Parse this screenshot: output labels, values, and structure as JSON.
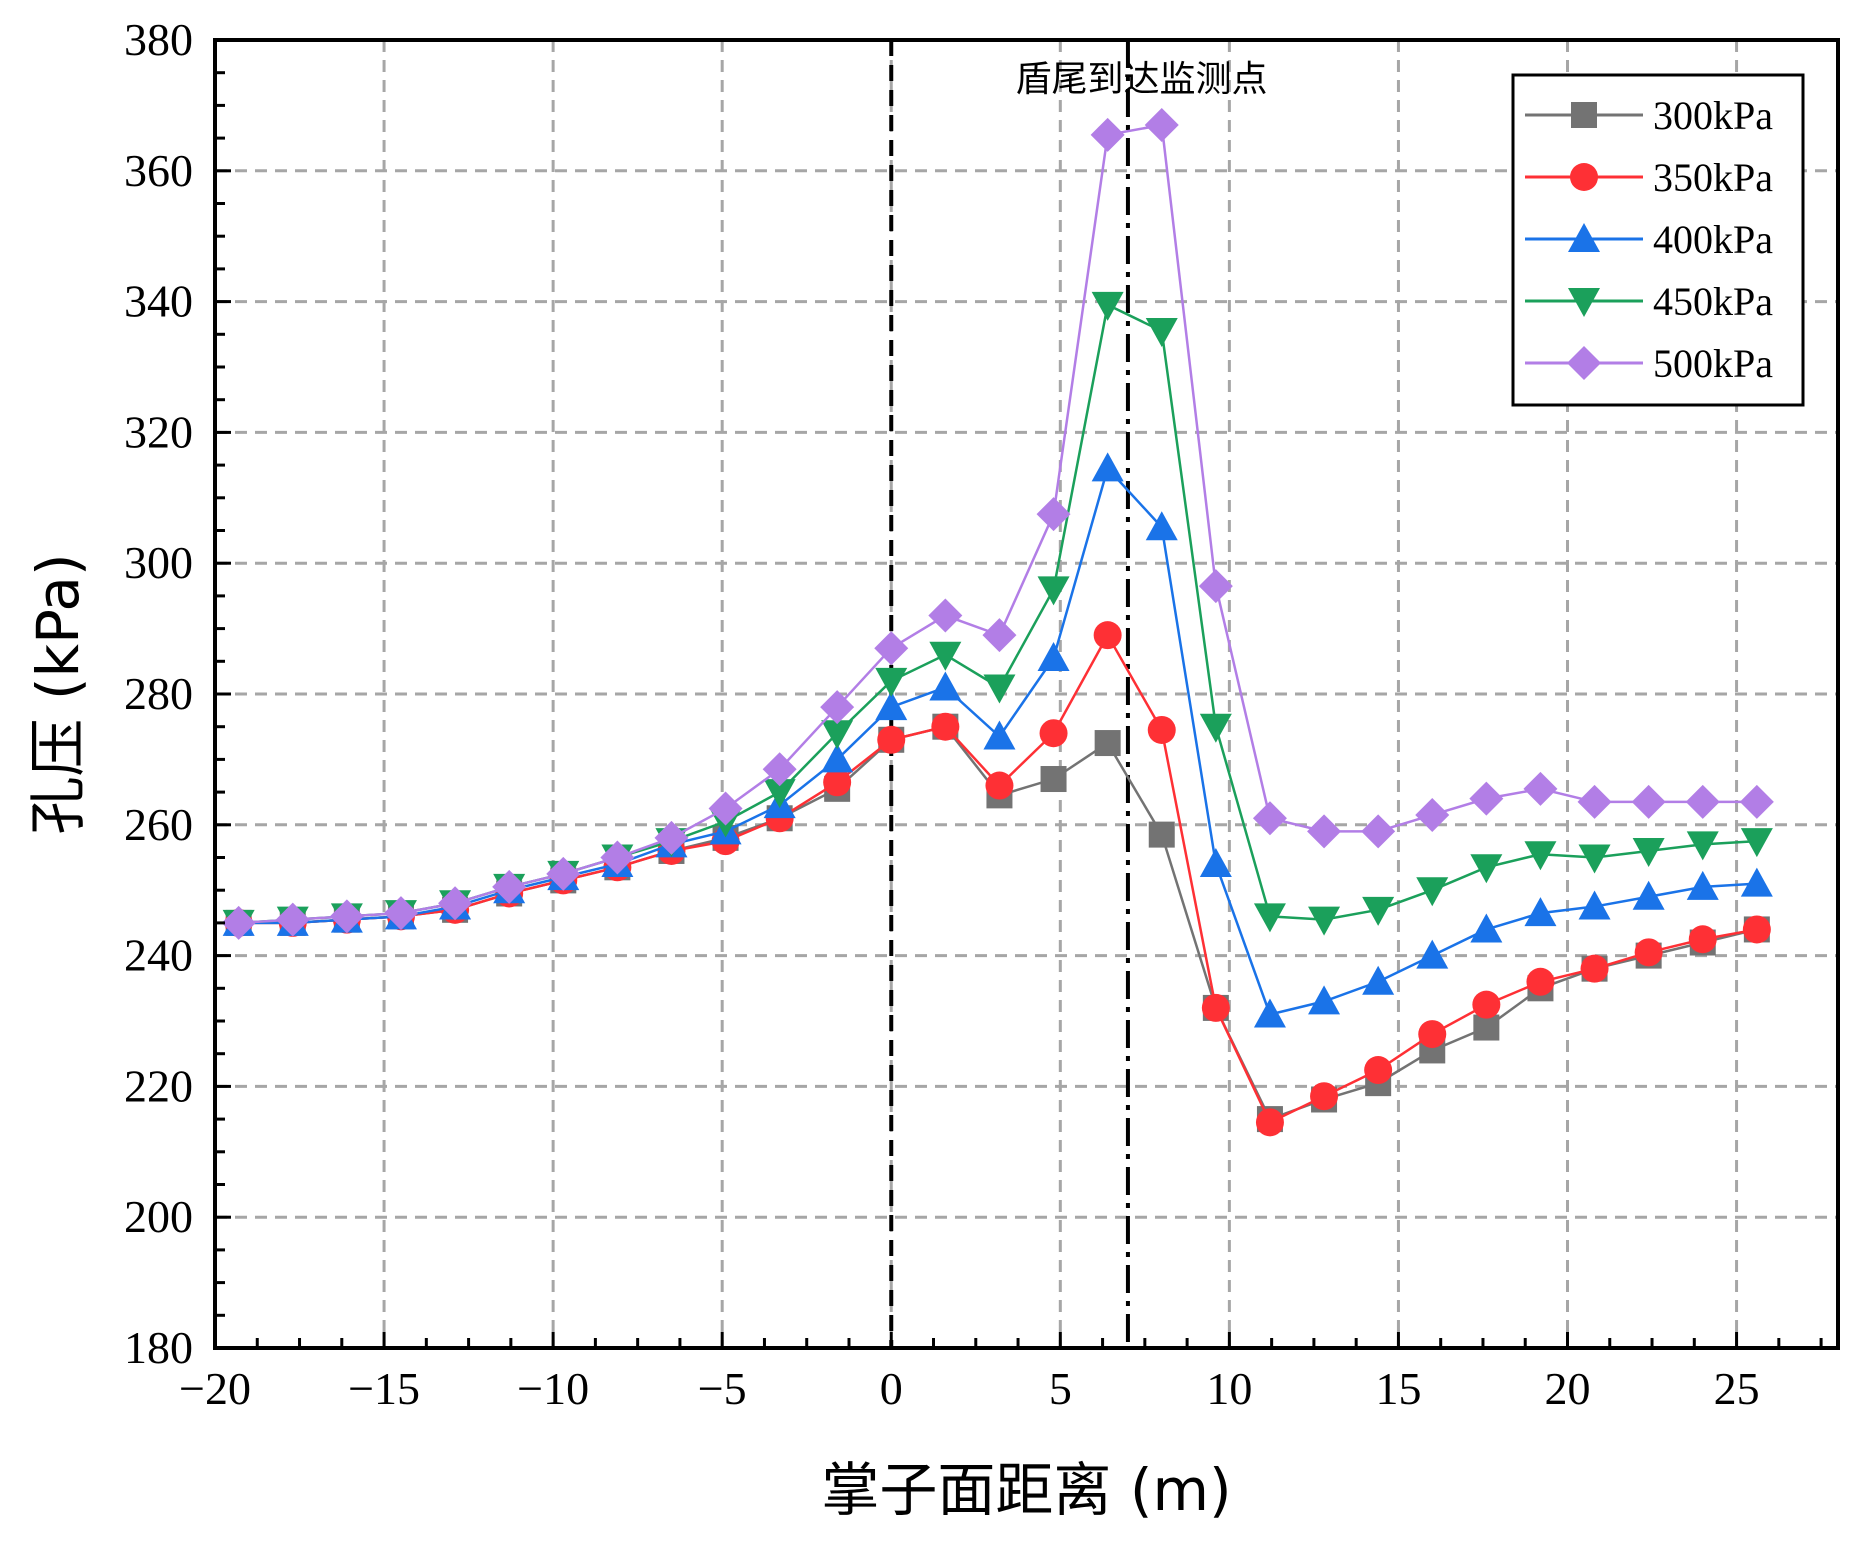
{
  "chart_data": {
    "type": "line",
    "title": "",
    "xlabel": "掌子面距离 (m)",
    "ylabel": "孔压 (kPa)",
    "xlim": [
      -20,
      28
    ],
    "ylim": [
      180,
      380
    ],
    "xticks": [
      -20,
      -15,
      -10,
      -5,
      0,
      5,
      10,
      15,
      20,
      25
    ],
    "yticks": [
      180,
      200,
      220,
      240,
      260,
      280,
      300,
      320,
      340,
      360,
      380
    ],
    "xtick_labels": [
      "−20",
      "−15",
      "−10",
      "−5",
      "0",
      "5",
      "10",
      "15",
      "20",
      "25"
    ],
    "ytick_labels": [
      "180",
      "200",
      "220",
      "240",
      "260",
      "280",
      "300",
      "320",
      "340",
      "360",
      "380"
    ],
    "grid": true,
    "legend_position": "top-right",
    "x": [
      -19.3,
      -17.7,
      -16.1,
      -14.5,
      -12.9,
      -11.3,
      -9.7,
      -8.1,
      -6.5,
      -4.9,
      -3.3,
      -1.6,
      0,
      1.6,
      3.2,
      4.8,
      6.4,
      8.0,
      9.6,
      11.2,
      12.8,
      14.4,
      16.0,
      17.6,
      19.2,
      20.8,
      22.4,
      24.0,
      25.6
    ],
    "series": [
      {
        "name": "300kPa",
        "color": "#737373",
        "marker": "square",
        "values": [
          245,
          245,
          245.5,
          246,
          247,
          249.5,
          251.5,
          253.5,
          256,
          258,
          261,
          265.5,
          273,
          275,
          264.5,
          267,
          272.5,
          258.5,
          232,
          215,
          218,
          220.5,
          225.5,
          229,
          235,
          238,
          240,
          242,
          244
        ]
      },
      {
        "name": "350kPa",
        "color": "#fe3035",
        "marker": "circle",
        "values": [
          245,
          245,
          245.5,
          246,
          247,
          249.5,
          251.5,
          253.5,
          256,
          257.5,
          261,
          266.5,
          273,
          275,
          266,
          274,
          289,
          274.5,
          232,
          214.5,
          218.5,
          222.5,
          228,
          232.5,
          236,
          238,
          240.5,
          242.5,
          244
        ]
      },
      {
        "name": "400kPa",
        "color": "#1a73e8",
        "marker": "triangle-up",
        "values": [
          245,
          245,
          245.5,
          246,
          247.5,
          250,
          252,
          254,
          257,
          259,
          263,
          270,
          278,
          281,
          273.5,
          285.5,
          314.5,
          305.5,
          254,
          231,
          233,
          236,
          240,
          244,
          246.5,
          247.5,
          249,
          250.5,
          251
        ]
      },
      {
        "name": "450kPa",
        "color": "#1ba05b",
        "marker": "triangle-down",
        "values": [
          245,
          245.5,
          246,
          246.5,
          248,
          250.5,
          252.5,
          255,
          257.5,
          260.5,
          265,
          274,
          282,
          286,
          281,
          296,
          339.5,
          335.5,
          275,
          246,
          245.5,
          247,
          250,
          253.5,
          255.5,
          255,
          256,
          257,
          257.5
        ]
      },
      {
        "name": "500kPa",
        "color": "#b27ee6",
        "marker": "diamond",
        "values": [
          245,
          245.5,
          246,
          246.5,
          248,
          250.5,
          252.5,
          255,
          258,
          262.5,
          268.5,
          278,
          287,
          292,
          289,
          307.5,
          365.5,
          367,
          296.5,
          261,
          259,
          259,
          261.5,
          264,
          265.5,
          263.5,
          263.5,
          263.5,
          263.5
        ]
      }
    ],
    "vlines": [
      {
        "x": 0,
        "style": "dash",
        "color": "#000000"
      },
      {
        "x": 7,
        "style": "dash-dot",
        "color": "#000000"
      }
    ],
    "annotation": {
      "text": "盾尾到达监测点",
      "x": 7.4,
      "y": 374
    }
  }
}
